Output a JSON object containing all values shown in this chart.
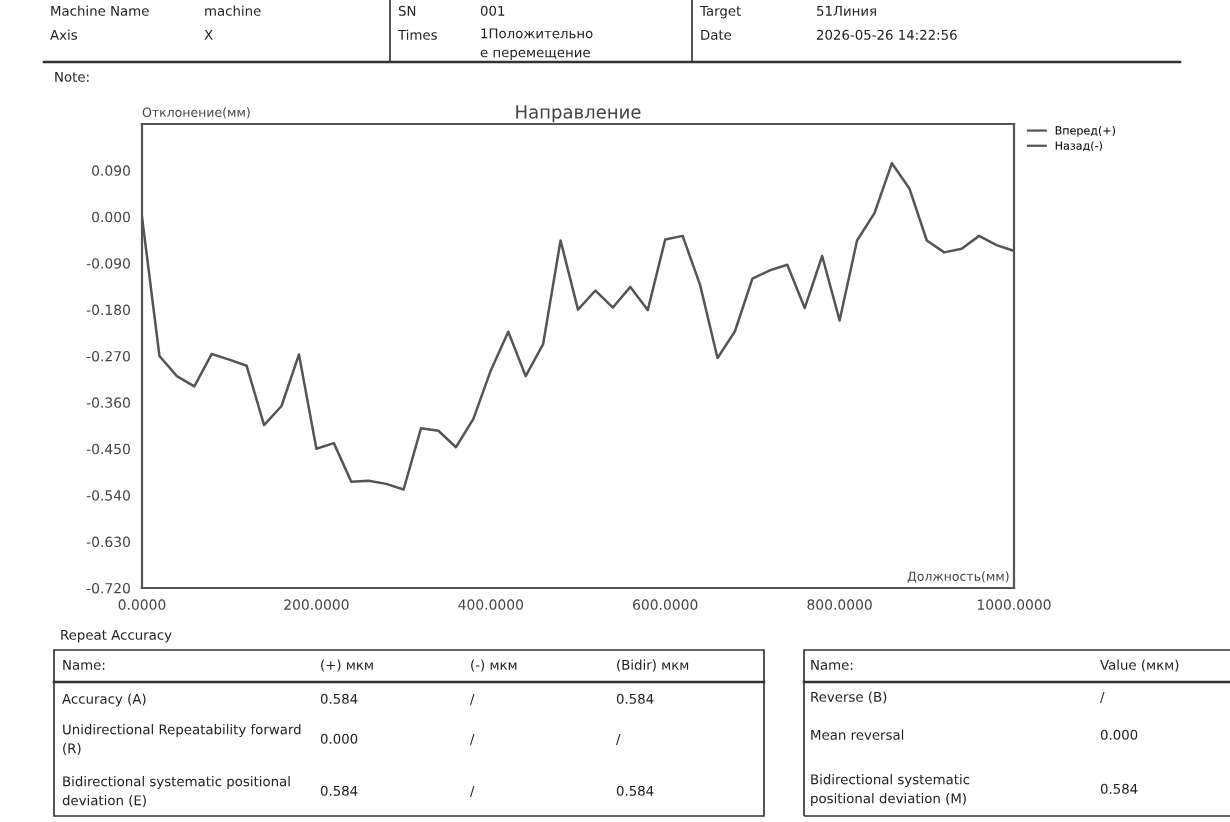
{
  "chart_data": {
    "type": "line",
    "title": "Направление",
    "xlabel": "Должность(мм)",
    "ylabel": "Отклонение(мм)",
    "x": [
      0,
      20,
      40,
      60,
      80,
      100,
      120,
      140,
      160,
      180,
      200,
      220,
      240,
      260,
      280,
      300,
      320,
      340,
      360,
      380,
      400,
      420,
      440,
      460,
      480,
      500,
      520,
      540,
      560,
      580,
      600,
      620,
      640,
      660,
      680,
      700,
      720,
      740,
      760,
      780,
      800,
      820,
      840,
      860,
      880,
      900,
      920,
      940,
      960,
      980,
      1000
    ],
    "series": [
      {
        "name": "Вперед(+)",
        "color": "#555555",
        "values": [
          0.0,
          -0.27,
          -0.309,
          -0.329,
          -0.266,
          -0.277,
          -0.289,
          -0.404,
          -0.367,
          -0.267,
          -0.45,
          -0.439,
          -0.514,
          -0.512,
          -0.518,
          -0.529,
          -0.41,
          -0.415,
          -0.447,
          -0.392,
          -0.298,
          -0.223,
          -0.309,
          -0.247,
          -0.046,
          -0.18,
          -0.143,
          -0.176,
          -0.136,
          -0.181,
          -0.044,
          -0.037,
          -0.132,
          -0.274,
          -0.222,
          -0.12,
          -0.104,
          -0.093,
          -0.177,
          -0.076,
          -0.201,
          -0.046,
          0.007,
          0.104,
          0.055,
          -0.046,
          -0.069,
          -0.062,
          -0.037,
          -0.055,
          -0.066
        ]
      },
      {
        "name": "Назад(-)",
        "color": "#555555",
        "values": [
          null,
          null,
          null,
          null,
          null,
          null,
          null,
          null,
          null,
          null,
          null,
          null,
          null,
          null,
          null,
          null,
          null,
          null,
          null,
          null,
          null,
          null,
          null,
          null,
          null,
          null,
          null,
          null,
          null,
          null,
          null,
          null,
          null,
          null,
          null,
          null,
          null,
          null,
          null,
          null,
          null,
          null,
          null,
          null,
          null,
          null,
          null,
          null,
          null,
          null,
          null
        ]
      }
    ],
    "xlim": [
      0,
      1000
    ],
    "xticks": [
      {
        "value": 0,
        "label": "0.0000"
      },
      {
        "value": 200,
        "label": "200.0000"
      },
      {
        "value": 400,
        "label": "400.0000"
      },
      {
        "value": 600,
        "label": "600.0000"
      },
      {
        "value": 800,
        "label": "800.0000"
      },
      {
        "value": 1000,
        "label": "1000.0000"
      }
    ],
    "ylim": [
      -0.72,
      0.18
    ],
    "yticks": [
      {
        "value": 0.09,
        "label": "0.090"
      },
      {
        "value": 0.0,
        "label": "0.000"
      },
      {
        "value": -0.09,
        "label": "-0.090"
      },
      {
        "value": -0.18,
        "label": "-0.180"
      },
      {
        "value": -0.27,
        "label": "-0.270"
      },
      {
        "value": -0.36,
        "label": "-0.360"
      },
      {
        "value": -0.45,
        "label": "-0.450"
      },
      {
        "value": -0.54,
        "label": "-0.540"
      },
      {
        "value": -0.63,
        "label": "-0.630"
      },
      {
        "value": -0.72,
        "label": "-0.720"
      }
    ],
    "grid": false,
    "legend": "top right",
    "marker": "none",
    "line_style": "solid",
    "annotations": [
      "Machine Name",
      "machine",
      "SN",
      "001",
      "Target",
      "51Линия",
      "Axis",
      "X",
      "Times",
      "1Положительно\nе перемещение",
      "Date",
      "2026-05-26 14:22:56",
      "Note:",
      "Repeat Accuracy",
      "Name:",
      "(+) мкм",
      "(-) мкм",
      "(Bidir) мкм",
      "Accuracy (A)",
      "0.584",
      "/",
      "0.584",
      "Unidirectional Repeatability forward\n(R)",
      "0.000",
      "/",
      "/",
      "Bidirectional systematic positional\ndeviation (E)",
      "0.584",
      "/",
      "0.584",
      "Name:",
      "Value (мкм)",
      "Reverse (B)",
      "/",
      "Mean reversal",
      "0.000",
      "Bidirectional systematic\npositional deviation (M)",
      "0.584"
    ]
  }
}
